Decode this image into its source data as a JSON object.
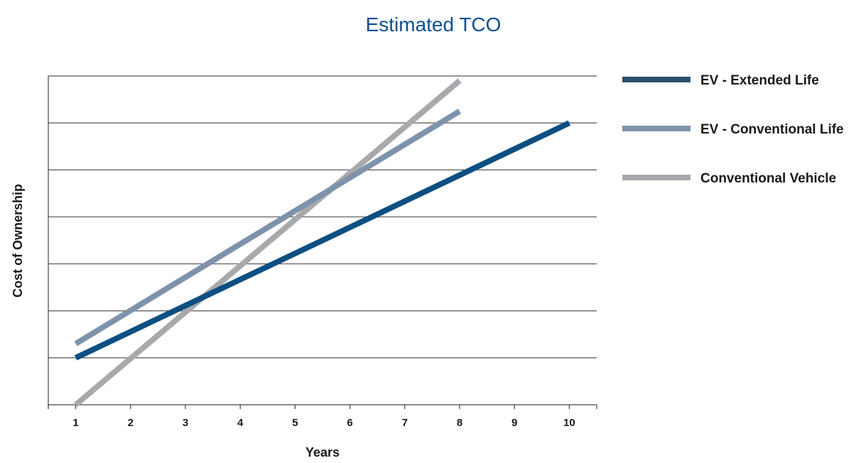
{
  "chart_data": {
    "type": "line",
    "title": "Estimated TCO",
    "xlabel": "Years",
    "ylabel": "Cost of Ownership",
    "x_ticks": [
      "1",
      "2",
      "3",
      "4",
      "5",
      "6",
      "7",
      "8",
      "9",
      "10"
    ],
    "xlim": [
      0.5,
      10.5
    ],
    "ylim": [
      0,
      7
    ],
    "y_gridlines": [
      1,
      2,
      3,
      4,
      5,
      6,
      7
    ],
    "y_tick_labels_shown": false,
    "grid": "horizontal",
    "legend": "right",
    "series": [
      {
        "name": "EV - Extended Life",
        "color": "#0d4f82",
        "x": [
          1,
          10
        ],
        "y": [
          1.0,
          6.0
        ]
      },
      {
        "name": "EV - Conventional Life",
        "color": "#7e93ab",
        "x": [
          1,
          8
        ],
        "y": [
          1.3,
          6.25
        ]
      },
      {
        "name": "Conventional Vehicle",
        "color": "#a7a9ac",
        "x": [
          1,
          8
        ],
        "y": [
          0.0,
          6.9
        ]
      }
    ],
    "legend_colors": [
      "#2b4f6e",
      "#7e93ab",
      "#a7a9ac"
    ],
    "colors": {
      "title": "#0d4f8f",
      "grid": "#555555",
      "axis": "#444444"
    }
  }
}
